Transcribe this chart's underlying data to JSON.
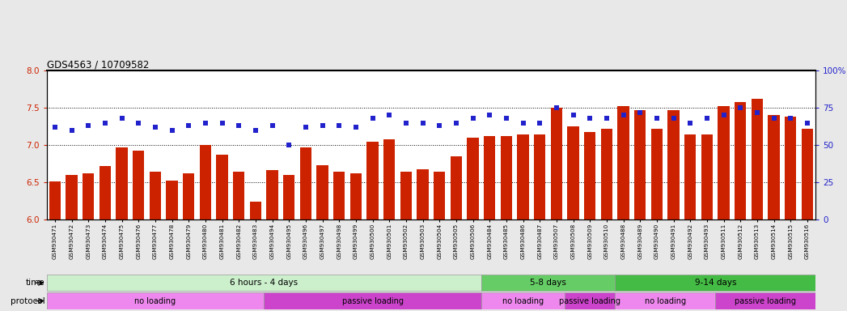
{
  "title": "GDS4563 / 10709582",
  "ylim_left": [
    6,
    8
  ],
  "ylim_right": [
    0,
    100
  ],
  "yticks_left": [
    6,
    6.5,
    7,
    7.5,
    8
  ],
  "yticks_right": [
    0,
    25,
    50,
    75,
    100
  ],
  "bar_color": "#cc2200",
  "dot_color": "#2222cc",
  "sample_ids": [
    "GSM930471",
    "GSM930472",
    "GSM930473",
    "GSM930474",
    "GSM930475",
    "GSM930476",
    "GSM930477",
    "GSM930478",
    "GSM930479",
    "GSM930480",
    "GSM930481",
    "GSM930482",
    "GSM930483",
    "GSM930494",
    "GSM930495",
    "GSM930496",
    "GSM930497",
    "GSM930498",
    "GSM930499",
    "GSM930500",
    "GSM930501",
    "GSM930502",
    "GSM930503",
    "GSM930504",
    "GSM930505",
    "GSM930506",
    "GSM930484",
    "GSM930485",
    "GSM930486",
    "GSM930487",
    "GSM930507",
    "GSM930508",
    "GSM930509",
    "GSM930510",
    "GSM930488",
    "GSM930489",
    "GSM930490",
    "GSM930491",
    "GSM930492",
    "GSM930493",
    "GSM930511",
    "GSM930512",
    "GSM930513",
    "GSM930514",
    "GSM930515",
    "GSM930516"
  ],
  "bar_values": [
    6.52,
    6.6,
    6.62,
    6.72,
    6.97,
    6.93,
    6.65,
    6.53,
    6.62,
    7.0,
    6.87,
    6.65,
    6.24,
    6.67,
    6.6,
    6.97,
    6.73,
    6.65,
    6.62,
    7.05,
    7.08,
    6.65,
    6.68,
    6.65,
    6.85,
    7.1,
    7.12,
    7.12,
    7.15,
    7.15,
    7.5,
    7.25,
    7.18,
    7.22,
    7.52,
    7.47,
    7.22,
    7.47,
    7.15,
    7.15,
    7.52,
    7.58,
    7.62,
    7.4,
    7.38,
    7.22
  ],
  "dot_values": [
    62,
    60,
    63,
    65,
    68,
    65,
    62,
    60,
    63,
    65,
    65,
    63,
    60,
    63,
    50,
    62,
    63,
    63,
    62,
    68,
    70,
    65,
    65,
    63,
    65,
    68,
    70,
    68,
    65,
    65,
    75,
    70,
    68,
    68,
    70,
    72,
    68,
    68,
    65,
    68,
    70,
    75,
    72,
    68,
    68,
    65
  ],
  "time_groups": [
    {
      "label": "6 hours - 4 days",
      "start": 0,
      "end": 26,
      "color": "#ccf0cc"
    },
    {
      "label": "5-8 days",
      "start": 26,
      "end": 34,
      "color": "#66cc66"
    },
    {
      "label": "9-14 days",
      "start": 34,
      "end": 46,
      "color": "#44bb44"
    }
  ],
  "protocol_groups": [
    {
      "label": "no loading",
      "start": 0,
      "end": 13,
      "color": "#ee88ee"
    },
    {
      "label": "passive loading",
      "start": 13,
      "end": 26,
      "color": "#cc44cc"
    },
    {
      "label": "no loading",
      "start": 26,
      "end": 31,
      "color": "#ee88ee"
    },
    {
      "label": "passive loading",
      "start": 31,
      "end": 34,
      "color": "#cc44cc"
    },
    {
      "label": "no loading",
      "start": 34,
      "end": 40,
      "color": "#ee88ee"
    },
    {
      "label": "passive loading",
      "start": 40,
      "end": 46,
      "color": "#cc44cc"
    }
  ],
  "hlines": [
    6.5,
    7.0,
    7.5
  ],
  "background_color": "#e8e8e8",
  "plot_bg_color": "#ffffff"
}
